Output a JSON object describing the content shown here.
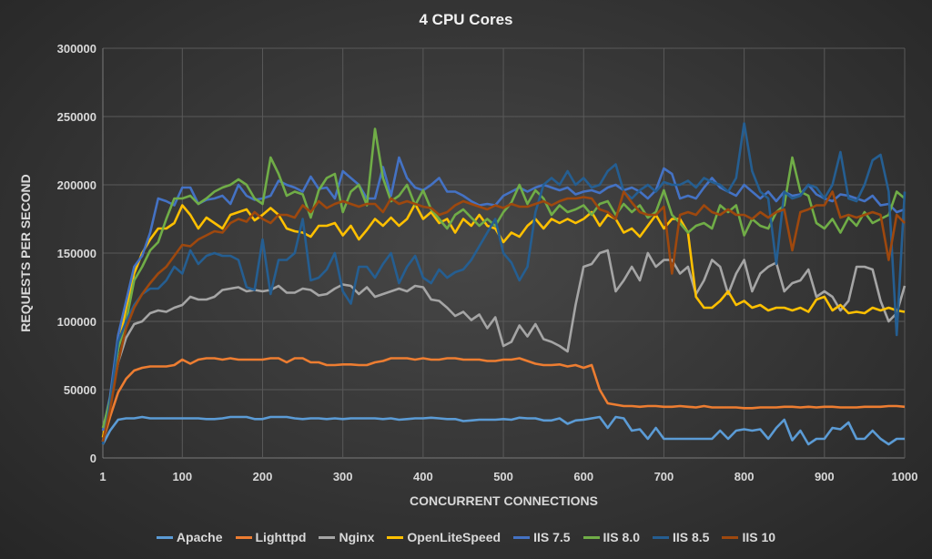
{
  "chart_data": {
    "type": "line",
    "title": "4 CPU Cores",
    "xlabel": "CONCURRENT CONNECTIONS",
    "ylabel": "REQUESTS PER SECOND",
    "ylim": [
      0,
      300000
    ],
    "xlim": [
      1,
      1000
    ],
    "yticks": [
      "0",
      "50000",
      "100000",
      "150000",
      "200000",
      "250000",
      "300000"
    ],
    "xticks": [
      "1",
      "100",
      "200",
      "300",
      "400",
      "500",
      "600",
      "700",
      "800",
      "900",
      "1000"
    ],
    "grid": true,
    "legend": "bottom",
    "x": [
      1,
      10,
      20,
      30,
      40,
      50,
      60,
      70,
      80,
      90,
      100,
      110,
      120,
      130,
      140,
      150,
      160,
      170,
      180,
      190,
      200,
      210,
      220,
      230,
      240,
      250,
      260,
      270,
      280,
      290,
      300,
      310,
      320,
      330,
      340,
      350,
      360,
      370,
      380,
      390,
      400,
      410,
      420,
      430,
      440,
      450,
      460,
      470,
      480,
      490,
      500,
      510,
      520,
      530,
      540,
      550,
      560,
      570,
      580,
      590,
      600,
      610,
      620,
      630,
      640,
      650,
      660,
      670,
      680,
      690,
      700,
      710,
      720,
      730,
      740,
      750,
      760,
      770,
      780,
      790,
      800,
      810,
      820,
      830,
      840,
      850,
      860,
      870,
      880,
      890,
      900,
      910,
      920,
      930,
      940,
      950,
      960,
      970,
      980,
      990,
      1000
    ],
    "series": [
      {
        "name": "Apache",
        "color": "#5b9bd5",
        "values": [
          10000,
          20000,
          28000,
          29000,
          29000,
          30000,
          29000,
          29000,
          29000,
          29000,
          29000,
          29000,
          29000,
          28500,
          28500,
          29000,
          30000,
          30000,
          30000,
          28500,
          28500,
          30000,
          30000,
          30000,
          29000,
          28500,
          29000,
          29000,
          28500,
          29000,
          28500,
          29000,
          29000,
          29000,
          29000,
          28500,
          29000,
          28000,
          28500,
          29000,
          29000,
          29500,
          29000,
          28500,
          28500,
          27000,
          27500,
          28000,
          28000,
          28000,
          28500,
          28000,
          29500,
          29000,
          29000,
          27500,
          27500,
          29000,
          25000,
          27500,
          28000,
          29000,
          30000,
          22000,
          30000,
          29000,
          20000,
          21000,
          14000,
          22000,
          14000,
          14000,
          14000,
          14000,
          14000,
          14000,
          14000,
          20000,
          14000,
          20000,
          21000,
          20000,
          21000,
          14000,
          22000,
          28000,
          13000,
          20000,
          10000,
          14000,
          14000,
          22000,
          21000,
          26000,
          14000,
          14000,
          20000,
          14000,
          10000,
          14000,
          14000
        ]
      },
      {
        "name": "Lighttpd",
        "color": "#ed7d31",
        "values": [
          12000,
          30000,
          48000,
          58000,
          64000,
          66000,
          67000,
          67000,
          67000,
          68000,
          72000,
          69000,
          72000,
          73000,
          73000,
          72000,
          73000,
          72000,
          72000,
          72000,
          72000,
          73000,
          73000,
          70000,
          73000,
          73000,
          70000,
          70000,
          68000,
          68000,
          68500,
          68500,
          68000,
          68000,
          70000,
          71000,
          73000,
          73000,
          73000,
          72000,
          73000,
          72000,
          72000,
          73000,
          73000,
          72000,
          72000,
          72000,
          71000,
          71000,
          72000,
          72000,
          73000,
          71000,
          69000,
          68000,
          68000,
          68500,
          67000,
          68000,
          66000,
          68000,
          50000,
          40000,
          39000,
          38000,
          38000,
          37500,
          38000,
          38000,
          37500,
          37500,
          38000,
          37500,
          37000,
          38000,
          37000,
          37000,
          37000,
          37000,
          36500,
          36500,
          37000,
          37000,
          37000,
          37500,
          37500,
          37000,
          37500,
          37000,
          37500,
          37500,
          37000,
          37000,
          37000,
          37500,
          37500,
          37500,
          38000,
          38000,
          37500
        ]
      },
      {
        "name": "Nginx",
        "color": "#a5a5a5",
        "values": [
          12000,
          40000,
          70000,
          88000,
          98000,
          100000,
          106000,
          108000,
          107000,
          110000,
          112000,
          118000,
          116000,
          116000,
          118000,
          123000,
          124000,
          125000,
          122000,
          123000,
          122000,
          123000,
          126000,
          121000,
          121000,
          124000,
          123000,
          119000,
          120000,
          124000,
          127000,
          126000,
          120000,
          125000,
          118000,
          120000,
          122000,
          124000,
          122000,
          126000,
          125000,
          116000,
          115000,
          110000,
          104000,
          107000,
          101000,
          105000,
          95000,
          103000,
          82000,
          85000,
          97000,
          89000,
          98000,
          87000,
          85000,
          82000,
          78000,
          112000,
          140000,
          142000,
          150000,
          152000,
          122000,
          130000,
          140000,
          130000,
          150000,
          140000,
          145000,
          145000,
          135000,
          140000,
          120000,
          130000,
          145000,
          140000,
          120000,
          135000,
          145000,
          122000,
          135000,
          140000,
          143000,
          122000,
          128000,
          130000,
          138000,
          118000,
          122000,
          118000,
          108000,
          115000,
          140000,
          140000,
          138000,
          115000,
          100000,
          106000,
          126000
        ]
      },
      {
        "name": "OpenLiteSpeed",
        "color": "#ffc000",
        "values": [
          15000,
          40000,
          80000,
          110000,
          135000,
          150000,
          160000,
          168000,
          168000,
          172000,
          185000,
          178000,
          168000,
          176000,
          172000,
          168000,
          178000,
          180000,
          182000,
          174000,
          178000,
          183000,
          178000,
          168000,
          166000,
          165000,
          162000,
          170000,
          170000,
          172000,
          163000,
          170000,
          160000,
          167000,
          175000,
          170000,
          176000,
          170000,
          175000,
          186000,
          175000,
          180000,
          172000,
          175000,
          165000,
          175000,
          170000,
          178000,
          170000,
          168000,
          158000,
          165000,
          162000,
          170000,
          175000,
          168000,
          175000,
          172000,
          175000,
          172000,
          175000,
          180000,
          170000,
          178000,
          175000,
          165000,
          168000,
          162000,
          170000,
          178000,
          168000,
          175000,
          175000,
          165000,
          118000,
          110000,
          110000,
          115000,
          122000,
          112000,
          115000,
          110000,
          112000,
          108000,
          110000,
          110000,
          108000,
          110000,
          107000,
          116000,
          118000,
          108000,
          112000,
          106000,
          107000,
          106000,
          110000,
          108000,
          110000,
          108000,
          107000
        ]
      },
      {
        "name": "IIS 7.5",
        "color": "#4472c4",
        "values": [
          20000,
          45000,
          90000,
          115000,
          140000,
          148000,
          165000,
          190000,
          188000,
          185000,
          198000,
          198000,
          186000,
          189000,
          190000,
          192000,
          186000,
          200000,
          192000,
          189000,
          190000,
          192000,
          203000,
          200000,
          198000,
          195000,
          206000,
          197000,
          198000,
          190000,
          210000,
          205000,
          200000,
          190000,
          190000,
          213000,
          192000,
          220000,
          205000,
          198000,
          196000,
          200000,
          205000,
          195000,
          195000,
          192000,
          188000,
          185000,
          186000,
          185000,
          192000,
          195000,
          198000,
          195000,
          198000,
          200000,
          198000,
          196000,
          198000,
          193000,
          195000,
          196000,
          194000,
          198000,
          200000,
          196000,
          198000,
          195000,
          190000,
          196000,
          212000,
          208000,
          190000,
          192000,
          190000,
          198000,
          205000,
          198000,
          195000,
          192000,
          200000,
          195000,
          190000,
          195000,
          188000,
          195000,
          192000,
          193000,
          200000,
          193000,
          190000,
          188000,
          193000,
          192000,
          190000,
          188000,
          192000,
          185000,
          186000,
          180000,
          182000
        ]
      },
      {
        "name": "IIS 8.0",
        "color": "#70ad47",
        "values": [
          22000,
          42000,
          80000,
          100000,
          130000,
          140000,
          152000,
          158000,
          175000,
          190000,
          190000,
          192000,
          186000,
          190000,
          195000,
          198000,
          200000,
          204000,
          200000,
          190000,
          186000,
          220000,
          208000,
          192000,
          195000,
          193000,
          176000,
          196000,
          205000,
          208000,
          180000,
          195000,
          200000,
          185000,
          241000,
          205000,
          188000,
          192000,
          200000,
          185000,
          196000,
          182000,
          175000,
          168000,
          178000,
          182000,
          176000,
          170000,
          175000,
          170000,
          180000,
          187000,
          200000,
          186000,
          196000,
          190000,
          178000,
          185000,
          180000,
          182000,
          185000,
          178000,
          186000,
          188000,
          178000,
          186000,
          180000,
          185000,
          176000,
          180000,
          196000,
          178000,
          172000,
          165000,
          170000,
          172000,
          168000,
          185000,
          180000,
          185000,
          163000,
          175000,
          170000,
          168000,
          180000,
          185000,
          220000,
          195000,
          192000,
          172000,
          168000,
          175000,
          165000,
          176000,
          170000,
          180000,
          172000,
          175000,
          178000,
          195000,
          190000
        ]
      },
      {
        "name": "IIS 8.5",
        "color": "#255e91",
        "values": [
          10000,
          40000,
          85000,
          100000,
          112000,
          120000,
          124000,
          124000,
          130000,
          140000,
          135000,
          152000,
          142000,
          148000,
          150000,
          148000,
          148000,
          145000,
          125000,
          123000,
          160000,
          120000,
          145000,
          145000,
          150000,
          175000,
          130000,
          132000,
          138000,
          150000,
          122000,
          113000,
          140000,
          140000,
          132000,
          142000,
          150000,
          128000,
          140000,
          148000,
          132000,
          128000,
          138000,
          132000,
          136000,
          138000,
          145000,
          155000,
          165000,
          175000,
          150000,
          143000,
          130000,
          140000,
          180000,
          200000,
          205000,
          200000,
          210000,
          200000,
          205000,
          198000,
          200000,
          210000,
          215000,
          195000,
          190000,
          196000,
          200000,
          195000,
          202000,
          200000,
          200000,
          203000,
          198000,
          205000,
          202000,
          200000,
          195000,
          205000,
          245000,
          210000,
          195000,
          190000,
          142000,
          195000,
          190000,
          192000,
          200000,
          198000,
          190000,
          200000,
          224000,
          190000,
          188000,
          200000,
          218000,
          222000,
          195000,
          90000,
          195000
        ]
      },
      {
        "name": "IIS 10",
        "color": "#9e480e",
        "values": [
          12000,
          35000,
          70000,
          95000,
          110000,
          120000,
          128000,
          135000,
          140000,
          148000,
          156000,
          155000,
          160000,
          163000,
          166000,
          165000,
          172000,
          175000,
          173000,
          180000,
          175000,
          172000,
          178000,
          178000,
          176000,
          185000,
          180000,
          188000,
          183000,
          186000,
          188000,
          186000,
          184000,
          186000,
          186000,
          180000,
          190000,
          186000,
          188000,
          186000,
          184000,
          183000,
          178000,
          180000,
          185000,
          188000,
          186000,
          184000,
          182000,
          185000,
          183000,
          186000,
          184000,
          184000,
          186000,
          188000,
          185000,
          188000,
          190000,
          190000,
          191000,
          190000,
          182000,
          180000,
          175000,
          195000,
          187000,
          180000,
          178000,
          178000,
          184000,
          135000,
          178000,
          180000,
          178000,
          185000,
          180000,
          178000,
          182000,
          178000,
          178000,
          175000,
          180000,
          176000,
          180000,
          182000,
          152000,
          180000,
          182000,
          185000,
          185000,
          195000,
          176000,
          178000,
          176000,
          178000,
          180000,
          178000,
          145000,
          178000,
          172000
        ]
      }
    ]
  }
}
